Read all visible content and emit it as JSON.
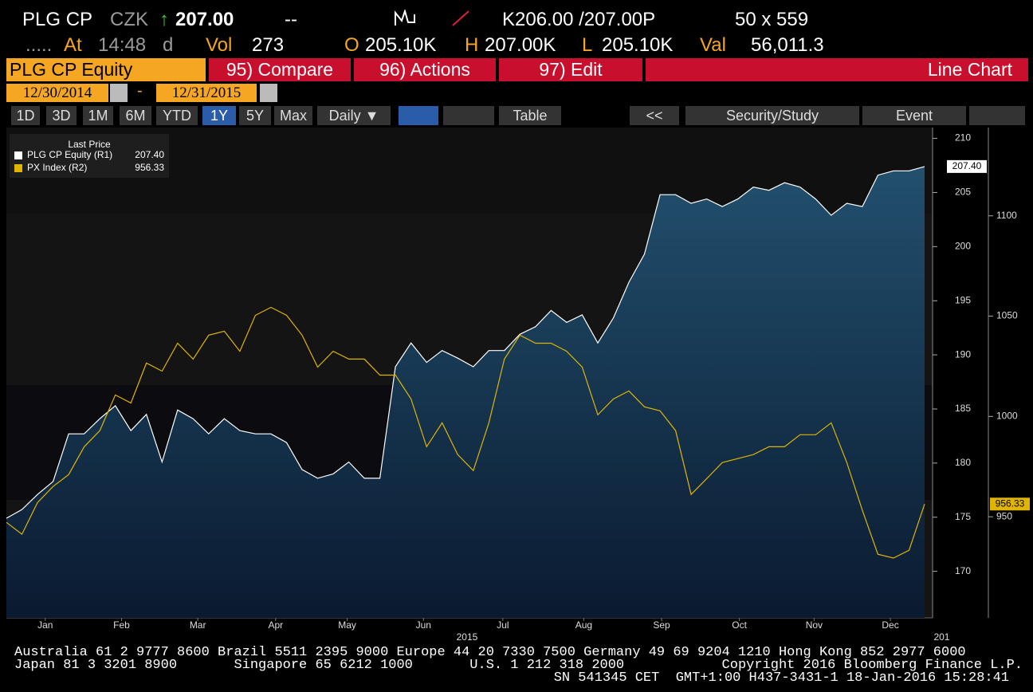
{
  "header": {
    "ticker": "PLG CP",
    "currency": "CZK",
    "arrow": "↑",
    "last": "207.00",
    "change": "--",
    "bid_ask": "K206.00 /207.00P",
    "size": "50 x 559",
    "dots": ".....",
    "at_label": "At",
    "time": "14:48",
    "time_flag": "d",
    "vol_label": "Vol",
    "vol": "273",
    "open_label": "O",
    "open": "205.10K",
    "high_label": "H",
    "high": "207.00K",
    "low_label": "L",
    "low": "205.10K",
    "val_label": "Val",
    "val": "56,011.3"
  },
  "tabs": {
    "security": "PLG CP Equity",
    "compare": "95) Compare",
    "actions": "96) Actions",
    "edit": "97) Edit",
    "chart_kind": "Line Chart"
  },
  "dates": {
    "start": "12/30/2014",
    "separator": "-",
    "end": "12/31/2015"
  },
  "toolbar": {
    "ranges": [
      "1D",
      "3D",
      "1M",
      "6M",
      "YTD",
      "1Y",
      "5Y",
      "Max"
    ],
    "frequency": "Daily ▼",
    "table": "Table",
    "back": "<<",
    "study": "Security/Study",
    "event": "Event"
  },
  "chart_data": {
    "type": "line",
    "legend_title": "Last Price",
    "x": [
      0,
      1,
      2,
      3,
      4,
      5,
      6,
      7,
      8,
      9,
      10,
      11,
      12,
      13,
      14,
      15,
      16,
      17,
      18,
      19,
      20,
      21,
      22,
      23,
      24,
      25,
      26,
      27,
      28,
      29,
      30,
      31,
      32,
      33,
      34,
      35,
      36,
      37,
      38,
      39,
      40,
      41,
      42,
      43,
      44,
      45,
      46,
      47,
      48,
      49,
      50,
      51,
      52,
      53,
      54,
      55,
      56,
      57,
      58,
      59
    ],
    "xlim": [
      0,
      59
    ],
    "xticks": [
      {
        "value": 2.5,
        "label": "Jan"
      },
      {
        "value": 7.4,
        "label": "Feb"
      },
      {
        "value": 12.3,
        "label": "Mar"
      },
      {
        "value": 17.3,
        "label": "Apr"
      },
      {
        "value": 21.9,
        "label": "May"
      },
      {
        "value": 26.8,
        "label": "Jun"
      },
      {
        "value": 31.9,
        "label": "Jul"
      },
      {
        "value": 37.1,
        "label": "Aug"
      },
      {
        "value": 42.1,
        "label": "Sep"
      },
      {
        "value": 47.1,
        "label": "Oct"
      },
      {
        "value": 51.9,
        "label": "Nov"
      },
      {
        "value": 56.8,
        "label": "Dec"
      }
    ],
    "year_labels": [
      {
        "value": 29.6,
        "label": "2015"
      },
      {
        "value": 60.1,
        "label": "201"
      }
    ],
    "ylim": [
      165.7,
      211.0
    ],
    "yticks": [
      170,
      175,
      180,
      185,
      190,
      195,
      200,
      205,
      210
    ],
    "y2lim": [
      899.6,
      1144
    ],
    "y2ticks": [
      950,
      1000,
      1050,
      1100
    ],
    "series": [
      {
        "name": "PLG CP Equity (R1)",
        "color": "#ffffff",
        "axis": "y",
        "last_value_label": "207.40",
        "values": [
          174.9,
          175.7,
          177.1,
          178.3,
          182.7,
          182.7,
          184.1,
          185.3,
          183.0,
          184.5,
          180.1,
          184.9,
          184.1,
          182.7,
          184.1,
          183.0,
          182.7,
          182.7,
          181.9,
          179.4,
          178.6,
          179.0,
          180.1,
          178.6,
          178.6,
          188.9,
          191.1,
          189.3,
          190.4,
          189.7,
          188.9,
          190.4,
          190.4,
          191.9,
          192.6,
          194.1,
          193.0,
          193.7,
          191.1,
          193.4,
          196.7,
          199.3,
          204.8,
          204.8,
          204.0,
          204.4,
          203.7,
          204.4,
          205.5,
          205.2,
          205.9,
          205.5,
          204.4,
          202.9,
          204.0,
          203.7,
          206.6,
          207.0,
          207.0,
          207.4
        ]
      },
      {
        "name": "PX Index (R2)",
        "color": "#e0b500",
        "axis": "y2",
        "last_value_label": "956.33",
        "values": [
          947.2,
          941.3,
          957.1,
          965.1,
          971.0,
          984.9,
          992.9,
          1010.7,
          1006.7,
          1026.6,
          1022.6,
          1036.5,
          1028.6,
          1040.5,
          1042.5,
          1032.5,
          1050.4,
          1054.4,
          1050.4,
          1040.5,
          1024.6,
          1032.5,
          1028.6,
          1028.6,
          1020.6,
          1020.6,
          1008.7,
          984.9,
          996.8,
          981.0,
          973.0,
          996.8,
          1028.6,
          1040.5,
          1036.5,
          1036.5,
          1032.5,
          1024.6,
          1000.8,
          1008.7,
          1012.7,
          1004.8,
          1002.8,
          992.9,
          961.1,
          969.0,
          977.0,
          979.0,
          981.0,
          984.9,
          984.9,
          990.9,
          990.9,
          996.8,
          977.0,
          953.2,
          931.3,
          929.4,
          933.3,
          956.33
        ]
      }
    ]
  },
  "footer": {
    "lines": [
      "Australia 61 2 9777 8600 Brazil 5511 2395 9000 Europe 44 20 7330 7500 Germany 49 69 9204 1210 Hong Kong 852 2977 6000",
      "Japan 81 3 3201 8900       Singapore 65 6212 1000       U.S. 1 212 318 2000            Copyright 2016 Bloomberg Finance L.P.",
      "SN 541345 CET  GMT+1:00 H437-3431-1 18-Jan-2016 15:28:41"
    ]
  }
}
